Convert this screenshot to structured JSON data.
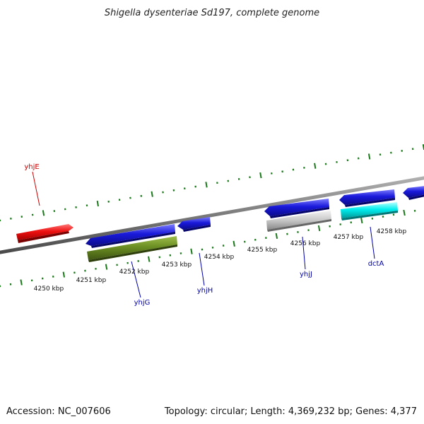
{
  "title": "Shigella dysenteriae Sd197, complete genome",
  "footer": {
    "accession": "Accession: NC_007606",
    "summary": "Topology: circular; Length: 4,369,232 bp; Genes: 4,377"
  },
  "scale_labels": [
    "4250 kbp",
    "4251 kbp",
    "4252 kbp",
    "4253 kbp",
    "4254 kbp",
    "4255 kbp",
    "4256 kbp",
    "4257 kbp",
    "4258 kbp"
  ],
  "gene_labels": [
    {
      "name": "yhjE",
      "color": "#cc0000"
    },
    {
      "name": "yhjG",
      "color": "#0000aa"
    },
    {
      "name": "yhjH",
      "color": "#0000aa"
    },
    {
      "name": "yhjJ",
      "color": "#0000aa"
    },
    {
      "name": "dctA",
      "color": "#0000aa"
    }
  ],
  "colors": {
    "backbone": "#7a7a7a",
    "ticks": "#1a7a1a",
    "forward_gene": "#ee1111",
    "reverse_gene": "#1a1adb",
    "rna_gene": "#6b8e23",
    "pseudogene": "#c8c8c8",
    "highlight_gene": "#00eeee"
  }
}
